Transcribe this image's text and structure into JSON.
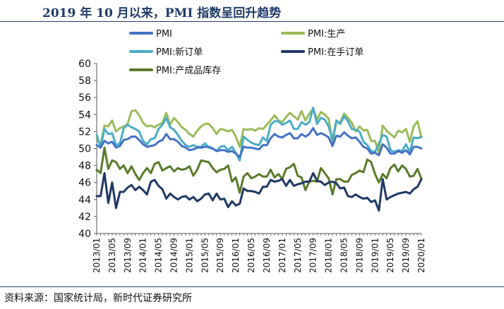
{
  "header": {
    "title": "2019 年 10 月以来，PMI 指数呈回升趋势"
  },
  "footer": {
    "source": "资料来源：国家统计局，新时代证券研究所"
  },
  "colors": {
    "rule": "#1f3a68",
    "axis": "#555555"
  },
  "chart_data": {
    "type": "line",
    "ylim": [
      40,
      60
    ],
    "yticks": [
      40,
      42,
      44,
      46,
      48,
      50,
      52,
      54,
      56,
      58,
      60
    ],
    "grid": false,
    "legend": "top",
    "x": [
      "2013/01",
      "2013/02",
      "2013/03",
      "2013/04",
      "2013/05",
      "2013/06",
      "2013/07",
      "2013/08",
      "2013/09",
      "2013/10",
      "2013/11",
      "2013/12",
      "2014/01",
      "2014/02",
      "2014/03",
      "2014/04",
      "2014/05",
      "2014/06",
      "2014/07",
      "2014/08",
      "2014/09",
      "2014/10",
      "2014/11",
      "2014/12",
      "2015/01",
      "2015/02",
      "2015/03",
      "2015/04",
      "2015/05",
      "2015/06",
      "2015/07",
      "2015/08",
      "2015/09",
      "2015/10",
      "2015/11",
      "2015/12",
      "2016/01",
      "2016/02",
      "2016/03",
      "2016/04",
      "2016/05",
      "2016/06",
      "2016/07",
      "2016/08",
      "2016/09",
      "2016/10",
      "2016/11",
      "2016/12",
      "2017/01",
      "2017/02",
      "2017/03",
      "2017/04",
      "2017/05",
      "2017/06",
      "2017/07",
      "2017/08",
      "2017/09",
      "2017/10",
      "2017/11",
      "2017/12",
      "2018/01",
      "2018/02",
      "2018/03",
      "2018/04",
      "2018/05",
      "2018/06",
      "2018/07",
      "2018/08",
      "2018/09",
      "2018/10",
      "2018/11",
      "2018/12",
      "2019/01",
      "2019/02",
      "2019/03",
      "2019/04",
      "2019/05",
      "2019/06",
      "2019/07",
      "2019/08",
      "2019/09",
      "2019/10",
      "2019/11",
      "2019/12",
      "2020/01"
    ],
    "xtick_labels": [
      "2013/01",
      "2013/05",
      "2013/09",
      "2014/01",
      "2014/05",
      "2014/09",
      "2015/01",
      "2015/05",
      "2015/09",
      "2016/01",
      "2016/05",
      "2016/09",
      "2017/01",
      "2017/05",
      "2017/09",
      "2018/01",
      "2018/05",
      "2018/09",
      "2019/01",
      "2019/05",
      "2019/09",
      "2020/01"
    ],
    "series": [
      {
        "name": "PMI",
        "color": "#4472c4",
        "values": [
          50.4,
          50.1,
          50.9,
          50.6,
          50.8,
          50.1,
          50.3,
          51.0,
          51.1,
          51.4,
          51.4,
          51.0,
          50.5,
          50.2,
          50.3,
          50.4,
          50.8,
          51.0,
          51.7,
          51.1,
          51.1,
          50.8,
          50.3,
          50.1,
          49.8,
          49.9,
          50.1,
          50.1,
          50.2,
          50.2,
          50.0,
          49.7,
          49.8,
          49.8,
          49.6,
          49.7,
          49.4,
          49.0,
          50.2,
          50.1,
          50.1,
          50.0,
          49.9,
          50.4,
          50.4,
          51.2,
          51.7,
          51.4,
          51.3,
          51.6,
          51.8,
          51.2,
          51.2,
          51.7,
          51.4,
          51.7,
          52.4,
          51.6,
          51.8,
          51.6,
          51.3,
          50.3,
          51.5,
          51.4,
          51.9,
          51.5,
          51.2,
          51.3,
          50.8,
          50.2,
          50.0,
          49.4,
          49.5,
          49.2,
          50.5,
          50.1,
          49.4,
          49.4,
          49.7,
          49.5,
          49.8,
          49.3,
          50.2,
          50.2,
          50.0
        ]
      },
      {
        "name": "PMI:生产",
        "color": "#9bbb59",
        "values": [
          51.3,
          50.4,
          52.7,
          52.6,
          53.3,
          52.0,
          52.4,
          52.6,
          52.9,
          54.4,
          54.5,
          53.9,
          53.0,
          52.6,
          52.7,
          52.5,
          52.8,
          53.0,
          54.2,
          52.8,
          53.6,
          53.1,
          52.5,
          52.2,
          51.7,
          51.4,
          52.1,
          52.6,
          52.9,
          52.9,
          52.4,
          51.7,
          52.3,
          52.2,
          52.0,
          52.2,
          51.4,
          50.2,
          52.3,
          52.2,
          52.3,
          52.1,
          52.4,
          52.3,
          52.8,
          53.3,
          53.9,
          53.3,
          53.1,
          53.7,
          54.2,
          53.8,
          53.4,
          54.4,
          53.3,
          54.1,
          54.7,
          53.4,
          54.3,
          54.0,
          53.5,
          50.7,
          53.1,
          53.1,
          54.1,
          53.6,
          53.0,
          52.0,
          52.6,
          52.1,
          52.2,
          50.9,
          50.9,
          49.5,
          52.7,
          52.1,
          51.7,
          51.3,
          52.1,
          51.9,
          52.3,
          50.8,
          52.6,
          53.2,
          51.3
        ]
      },
      {
        "name": "PMI:新订单",
        "color": "#4bacc6",
        "values": [
          51.6,
          50.1,
          52.3,
          51.7,
          51.8,
          50.4,
          50.6,
          52.4,
          52.8,
          52.5,
          52.3,
          52.0,
          50.9,
          50.5,
          51.1,
          51.2,
          52.3,
          52.8,
          53.6,
          52.5,
          52.2,
          51.6,
          50.9,
          50.4,
          50.2,
          50.4,
          50.2,
          50.2,
          50.6,
          50.1,
          50.0,
          49.7,
          50.2,
          50.3,
          49.8,
          50.2,
          49.5,
          48.6,
          51.4,
          51.0,
          50.7,
          50.5,
          50.4,
          51.3,
          50.9,
          52.8,
          53.2,
          53.2,
          52.8,
          53.0,
          53.3,
          52.3,
          52.3,
          53.1,
          52.8,
          53.1,
          54.8,
          52.9,
          53.6,
          53.4,
          52.6,
          51.0,
          53.3,
          52.9,
          53.8,
          53.2,
          52.3,
          52.2,
          52.0,
          50.8,
          50.4,
          49.7,
          49.6,
          50.6,
          51.6,
          51.4,
          49.8,
          49.6,
          49.8,
          49.7,
          50.5,
          49.6,
          51.3,
          51.2,
          51.4
        ]
      },
      {
        "name": "PMI:在手订单",
        "color": "#1f3864",
        "values": [
          44.4,
          44.4,
          47.1,
          43.6,
          46.0,
          43.0,
          44.9,
          44.9,
          45.4,
          45.7,
          45.1,
          45.5,
          45.1,
          44.6,
          46.1,
          46.3,
          45.6,
          45.2,
          44.1,
          44.7,
          44.3,
          44.0,
          44.3,
          44.4,
          44.0,
          44.3,
          43.8,
          44.1,
          44.6,
          44.7,
          43.9,
          44.7,
          44.0,
          44.1,
          43.1,
          43.8,
          43.3,
          43.5,
          45.3,
          45.0,
          45.0,
          44.9,
          44.7,
          45.5,
          45.5,
          46.3,
          46.1,
          46.2,
          46.4,
          45.6,
          46.3,
          45.6,
          45.8,
          45.9,
          46.1,
          46.1,
          47.1,
          46.2,
          46.1,
          45.7,
          46.0,
          46.1,
          45.9,
          45.3,
          45.4,
          44.4,
          44.3,
          44.6,
          44.3,
          44.1,
          44.2,
          43.7,
          43.9,
          42.7,
          46.4,
          44.0,
          44.3,
          44.5,
          44.7,
          44.8,
          44.9,
          44.7,
          45.2,
          45.5,
          46.4
        ]
      },
      {
        "name": "PMI:产成品库存",
        "color": "#5a7a2a",
        "values": [
          47.5,
          47.1,
          50.1,
          47.6,
          48.6,
          48.4,
          47.6,
          48.0,
          47.1,
          47.9,
          47.0,
          46.3,
          47.1,
          47.7,
          47.1,
          48.2,
          48.4,
          47.4,
          47.7,
          47.9,
          47.3,
          47.7,
          47.5,
          47.6,
          47.9,
          46.8,
          47.5,
          48.6,
          48.5,
          48.4,
          47.7,
          47.2,
          47.5,
          47.6,
          48.0,
          46.1,
          46.6,
          44.8,
          46.7,
          47.1,
          46.5,
          46.7,
          47.0,
          46.7,
          46.7,
          47.5,
          46.6,
          47.0,
          46.4,
          47.6,
          47.8,
          48.2,
          46.8,
          46.6,
          45.1,
          46.1,
          46.2,
          46.1,
          47.7,
          47.1,
          46.5,
          44.6,
          46.4,
          46.4,
          46.1,
          46.1,
          46.9,
          47.1,
          47.4,
          47.2,
          48.7,
          48.4,
          47.0,
          46.0,
          47.0,
          46.5,
          47.7,
          48.1,
          47.3,
          48.0,
          47.6,
          46.7,
          46.8,
          47.6,
          46.4
        ]
      }
    ]
  }
}
